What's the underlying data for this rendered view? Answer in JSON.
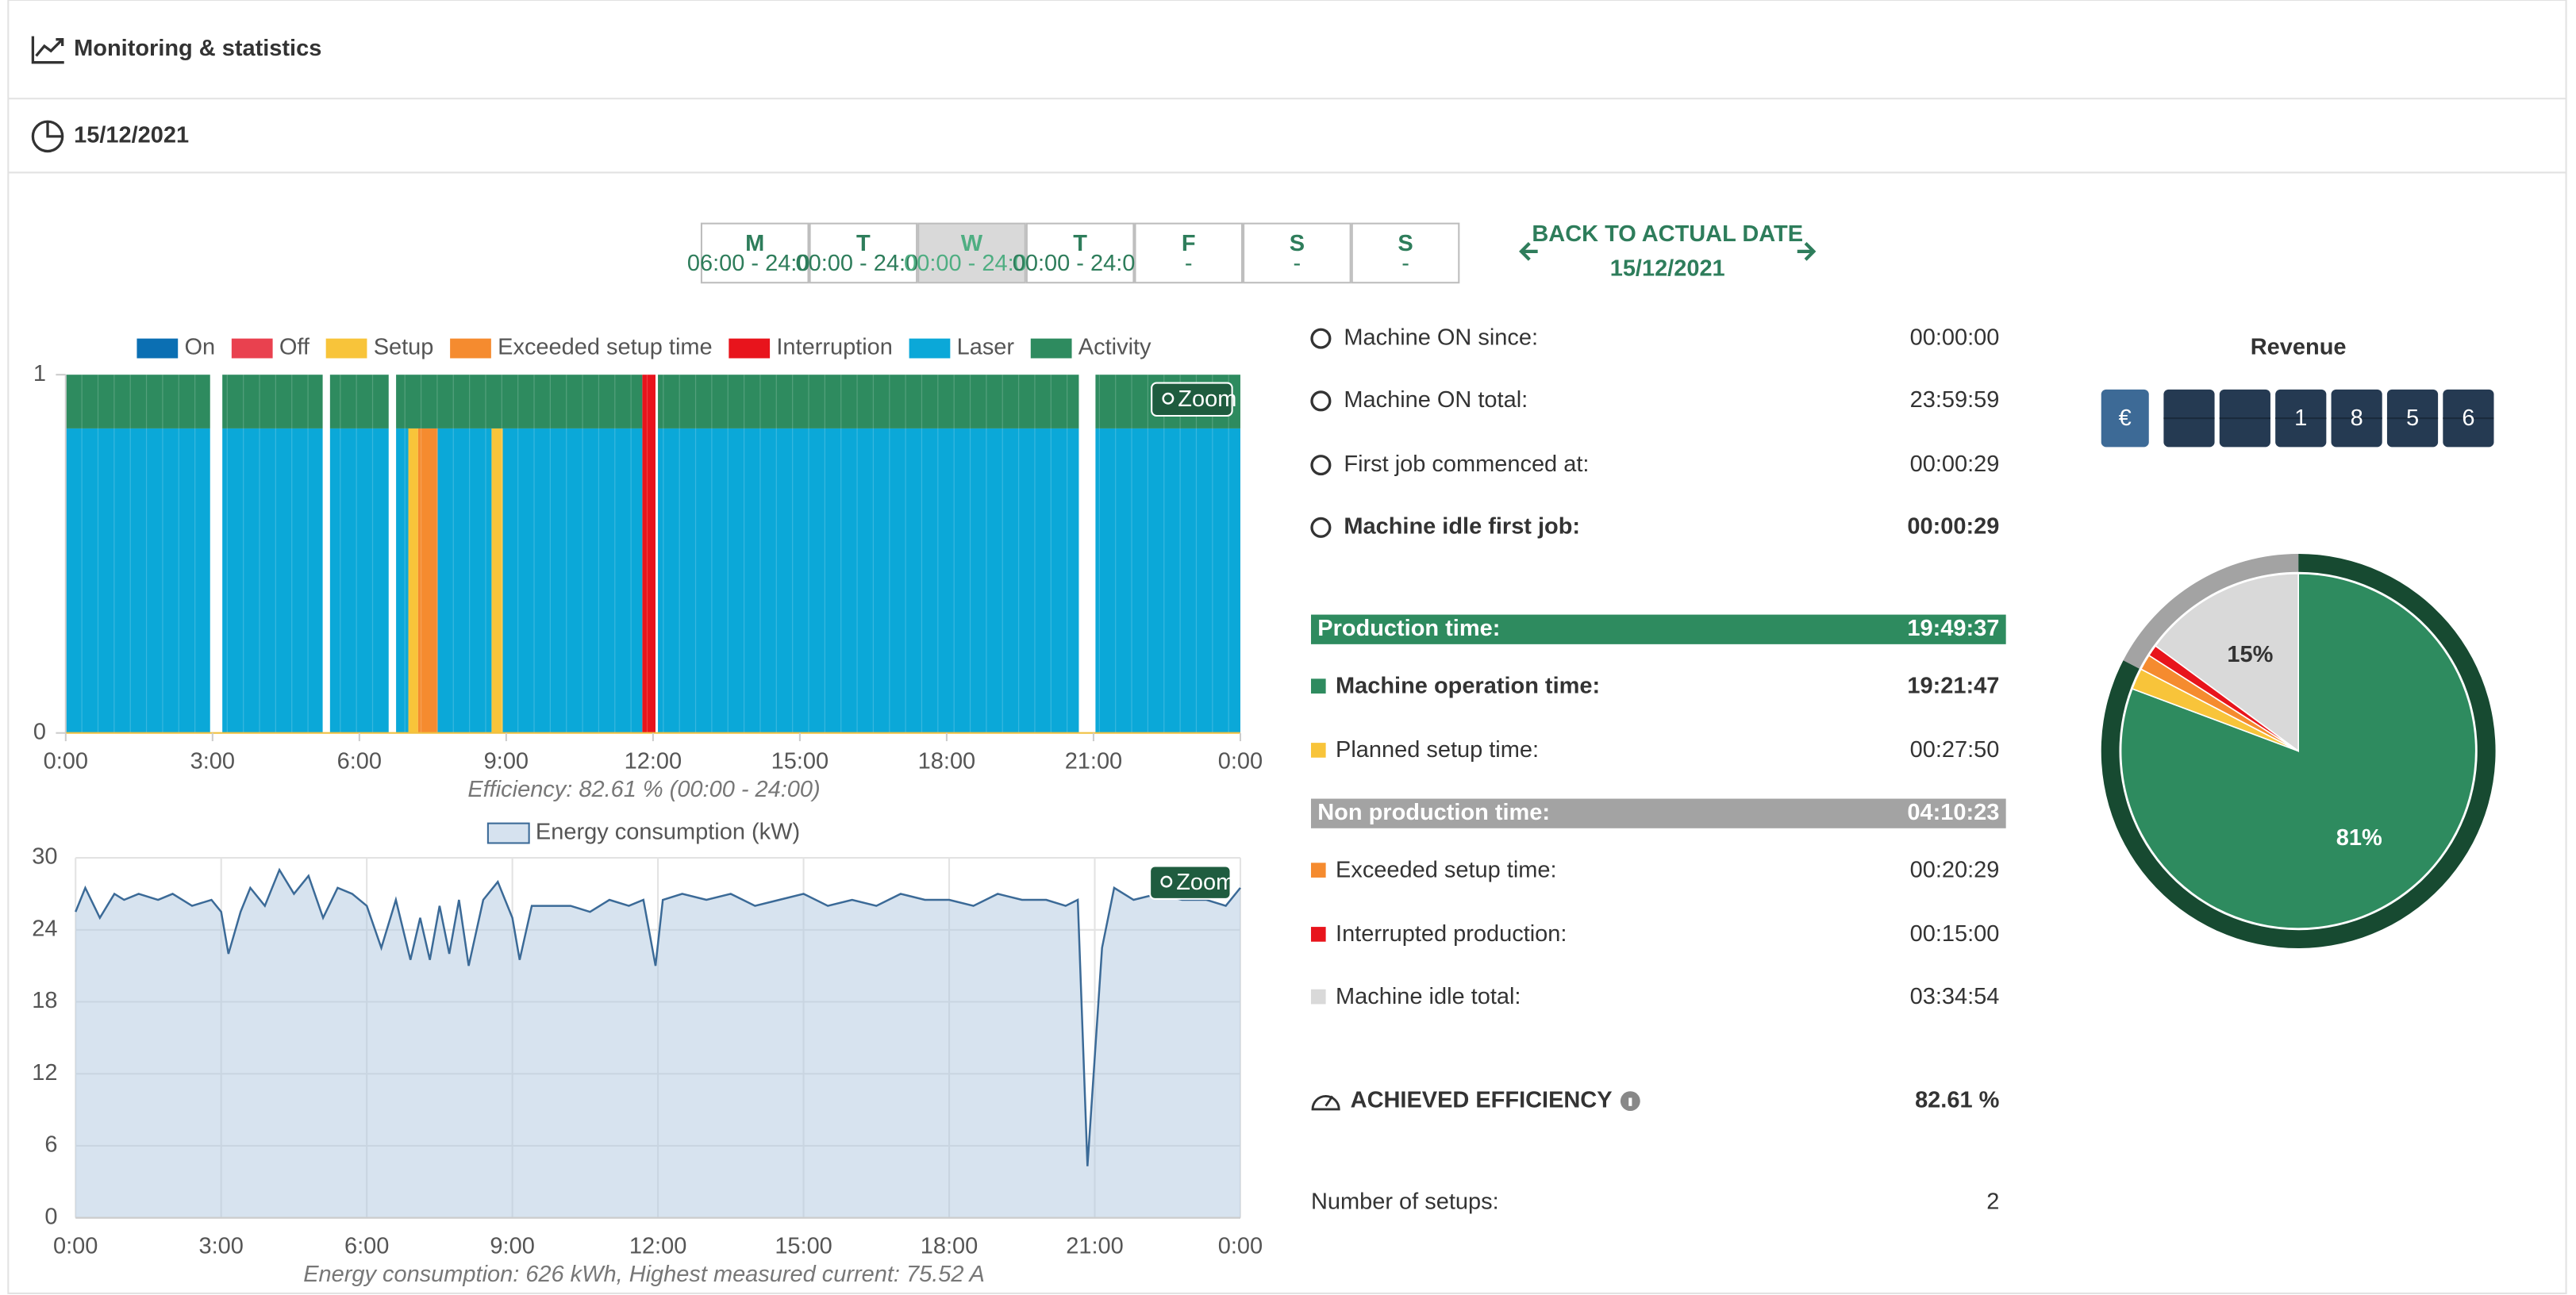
{
  "header": {
    "title": "Monitoring & statistics",
    "date": "15/12/2021"
  },
  "week": {
    "days": [
      {
        "letter": "M",
        "hours": "06:00 - 24:00"
      },
      {
        "letter": "T",
        "hours": "00:00 - 24:00"
      },
      {
        "letter": "W",
        "hours": "00:00 - 24:00"
      },
      {
        "letter": "T",
        "hours": "00:00 - 24:00"
      },
      {
        "letter": "F",
        "hours": "-"
      },
      {
        "letter": "S",
        "hours": "-"
      },
      {
        "letter": "S",
        "hours": "-"
      }
    ],
    "selected": 2,
    "back_label": "BACK TO ACTUAL DATE",
    "back_date": "15/12/2021"
  },
  "chart_data": [
    {
      "type": "timeline",
      "series": [
        {
          "name": "On",
          "color": "#0b6fb3",
          "range": [
            0,
            1
          ],
          "spans": []
        },
        {
          "name": "Off",
          "color": "#e9414f",
          "range": [
            0,
            1
          ],
          "spans": []
        },
        {
          "name": "Setup",
          "color": "#f8c43a",
          "range": [
            0,
            0.85
          ],
          "spans": [
            [
              7.0,
              7.2
            ],
            [
              8.7,
              8.93
            ]
          ]
        },
        {
          "name": "Exceeded setup time",
          "color": "#f58b2f",
          "range": [
            0,
            0.85
          ],
          "spans": [
            [
              7.2,
              7.6
            ]
          ]
        },
        {
          "name": "Interruption",
          "color": "#e8141c",
          "range": [
            0,
            1
          ],
          "spans": [
            [
              11.78,
              12.05
            ]
          ]
        },
        {
          "name": "Laser",
          "color": "#0ba8d8",
          "range": [
            0,
            0.85
          ],
          "spans": [
            [
              0,
              2.95
            ],
            [
              3.2,
              5.25
            ],
            [
              5.4,
              6.6
            ],
            [
              6.75,
              7.0
            ],
            [
              7.6,
              8.7
            ],
            [
              8.93,
              11.78
            ],
            [
              12.1,
              20.7
            ],
            [
              21.04,
              24
            ]
          ]
        },
        {
          "name": "Activity",
          "color": "#2e8b5f",
          "range": [
            0.85,
            1
          ],
          "spans": [
            [
              0,
              2.95
            ],
            [
              3.2,
              5.25
            ],
            [
              5.4,
              6.6
            ],
            [
              6.75,
              11.78
            ],
            [
              12.1,
              20.7
            ],
            [
              21.04,
              24
            ]
          ]
        }
      ],
      "xlim": [
        0,
        24
      ],
      "xticks": [
        {
          "value": 0,
          "label": "0:00"
        },
        {
          "value": 3,
          "label": "3:00"
        },
        {
          "value": 6,
          "label": "6:00"
        },
        {
          "value": 9,
          "label": "9:00"
        },
        {
          "value": 12,
          "label": "12:00"
        },
        {
          "value": 15,
          "label": "15:00"
        },
        {
          "value": 18,
          "label": "18:00"
        },
        {
          "value": 21,
          "label": "21:00"
        },
        {
          "value": 24,
          "label": "0:00"
        }
      ],
      "ylim": [
        0,
        1
      ],
      "yticks": [
        0,
        1
      ],
      "zoom": "Zoom",
      "caption": "Efficiency: 82.61 % (00:00 - 24:00)"
    },
    {
      "type": "area",
      "series": [
        {
          "name": "Energy consumption (kW)",
          "color": "#3b6a97",
          "values": [
            25.5,
            27.5,
            25,
            27,
            26.5,
            27,
            26.5,
            27,
            26,
            26.5,
            25.5,
            22,
            25.5,
            27.5,
            26,
            29,
            27,
            28.5,
            25,
            27.5,
            27,
            26,
            22.5,
            26.5,
            21.5,
            25,
            21.5,
            26,
            22,
            26.5,
            21,
            26.5,
            28,
            25,
            21.5,
            26,
            26,
            26,
            25.5,
            26.5,
            26,
            26.5,
            21,
            26.5,
            27,
            26.5,
            27,
            26,
            26.5,
            27,
            26,
            26.5,
            26,
            27,
            26.5,
            26.5,
            26,
            27,
            26.5,
            26.5,
            26,
            26.5,
            4.3,
            22.5,
            27.5,
            26.5,
            27,
            26.5,
            26.5,
            26,
            27.5
          ]
        }
      ],
      "x": [
        0,
        0.2,
        0.5,
        0.8,
        1.0,
        1.3,
        1.7,
        2.0,
        2.4,
        2.8,
        3.0,
        3.15,
        3.4,
        3.6,
        3.9,
        4.2,
        4.5,
        4.8,
        5.1,
        5.4,
        5.7,
        6.0,
        6.3,
        6.6,
        6.9,
        7.1,
        7.3,
        7.5,
        7.7,
        7.9,
        8.1,
        8.4,
        8.7,
        9.0,
        9.15,
        9.4,
        9.8,
        10.2,
        10.6,
        11.0,
        11.4,
        11.7,
        11.95,
        12.1,
        12.5,
        13.0,
        13.5,
        14.0,
        14.5,
        15.0,
        15.5,
        16.0,
        16.5,
        17.0,
        17.5,
        18.0,
        18.5,
        19.0,
        19.5,
        20.0,
        20.4,
        20.65,
        20.85,
        21.15,
        21.4,
        21.8,
        22.3,
        22.8,
        23.3,
        23.7,
        24
      ],
      "xlim": [
        0,
        24
      ],
      "xticks": [
        {
          "value": 0,
          "label": "0:00"
        },
        {
          "value": 3,
          "label": "3:00"
        },
        {
          "value": 6,
          "label": "6:00"
        },
        {
          "value": 9,
          "label": "9:00"
        },
        {
          "value": 12,
          "label": "12:00"
        },
        {
          "value": 15,
          "label": "15:00"
        },
        {
          "value": 18,
          "label": "18:00"
        },
        {
          "value": 21,
          "label": "21:00"
        },
        {
          "value": 24,
          "label": "0:00"
        }
      ],
      "ylim": [
        0,
        30
      ],
      "yticks": [
        0,
        6,
        12,
        18,
        24,
        30
      ],
      "grid": true,
      "zoom": "Zoom",
      "caption": "Energy consumption: 626 kWh, Highest measured current: 75.52 A"
    },
    {
      "type": "pie",
      "values": [
        80.7,
        1.93,
        1.42,
        1.04,
        14.9
      ],
      "value_labels": [
        "81%",
        null,
        null,
        null,
        "15%"
      ],
      "colors": [
        "#2e8b5f",
        "#f8c43a",
        "#f58b2f",
        "#e8141c",
        "#d9d9d9"
      ],
      "ring": {
        "values": [
          82.61,
          17.39
        ],
        "colors": [
          "#174a31",
          "#a3a3a3"
        ]
      }
    }
  ],
  "stats": {
    "rows": [
      {
        "style": "icon",
        "label": "Machine ON since:",
        "value": "00:00:00",
        "bold": false
      },
      {
        "style": "icon",
        "label": "Machine ON total:",
        "value": "23:59:59",
        "bold": false
      },
      {
        "style": "icon",
        "label": "First job commenced at:",
        "value": "00:00:29",
        "bold": false
      },
      {
        "style": "icon",
        "label": "Machine idle first job:",
        "value": "00:00:29",
        "bold": true
      },
      {
        "style": "band",
        "label": "Production time:",
        "value": "19:49:37",
        "color": "#2e8b5f",
        "bold": true
      },
      {
        "style": "swatch",
        "label": "Machine operation time:",
        "value": "19:21:47",
        "color": "#2e8b5f",
        "bold": true
      },
      {
        "style": "swatch",
        "label": "Planned setup time:",
        "value": "00:27:50",
        "color": "#f8c43a",
        "bold": false
      },
      {
        "style": "band",
        "label": "Non production time:",
        "value": "04:10:23",
        "color": "#a3a3a3",
        "bold": true
      },
      {
        "style": "swatch",
        "label": "Exceeded setup time:",
        "value": "00:20:29",
        "color": "#f58b2f",
        "bold": false
      },
      {
        "style": "swatch",
        "label": "Interrupted production:",
        "value": "00:15:00",
        "color": "#e8141c",
        "bold": false
      },
      {
        "style": "swatch",
        "label": "Machine idle total:",
        "value": "03:34:54",
        "color": "#d9d9d9",
        "bold": false
      },
      {
        "style": "headline",
        "label": "ACHIEVED EFFICIENCY",
        "value": "82.61 %",
        "bold": true
      },
      {
        "style": "plain",
        "label": "Number of setups:",
        "value": "2",
        "bold": false
      }
    ]
  },
  "revenue": {
    "title": "Revenue",
    "currency": "€",
    "digits": [
      "1",
      "8",
      "5",
      "6"
    ]
  }
}
